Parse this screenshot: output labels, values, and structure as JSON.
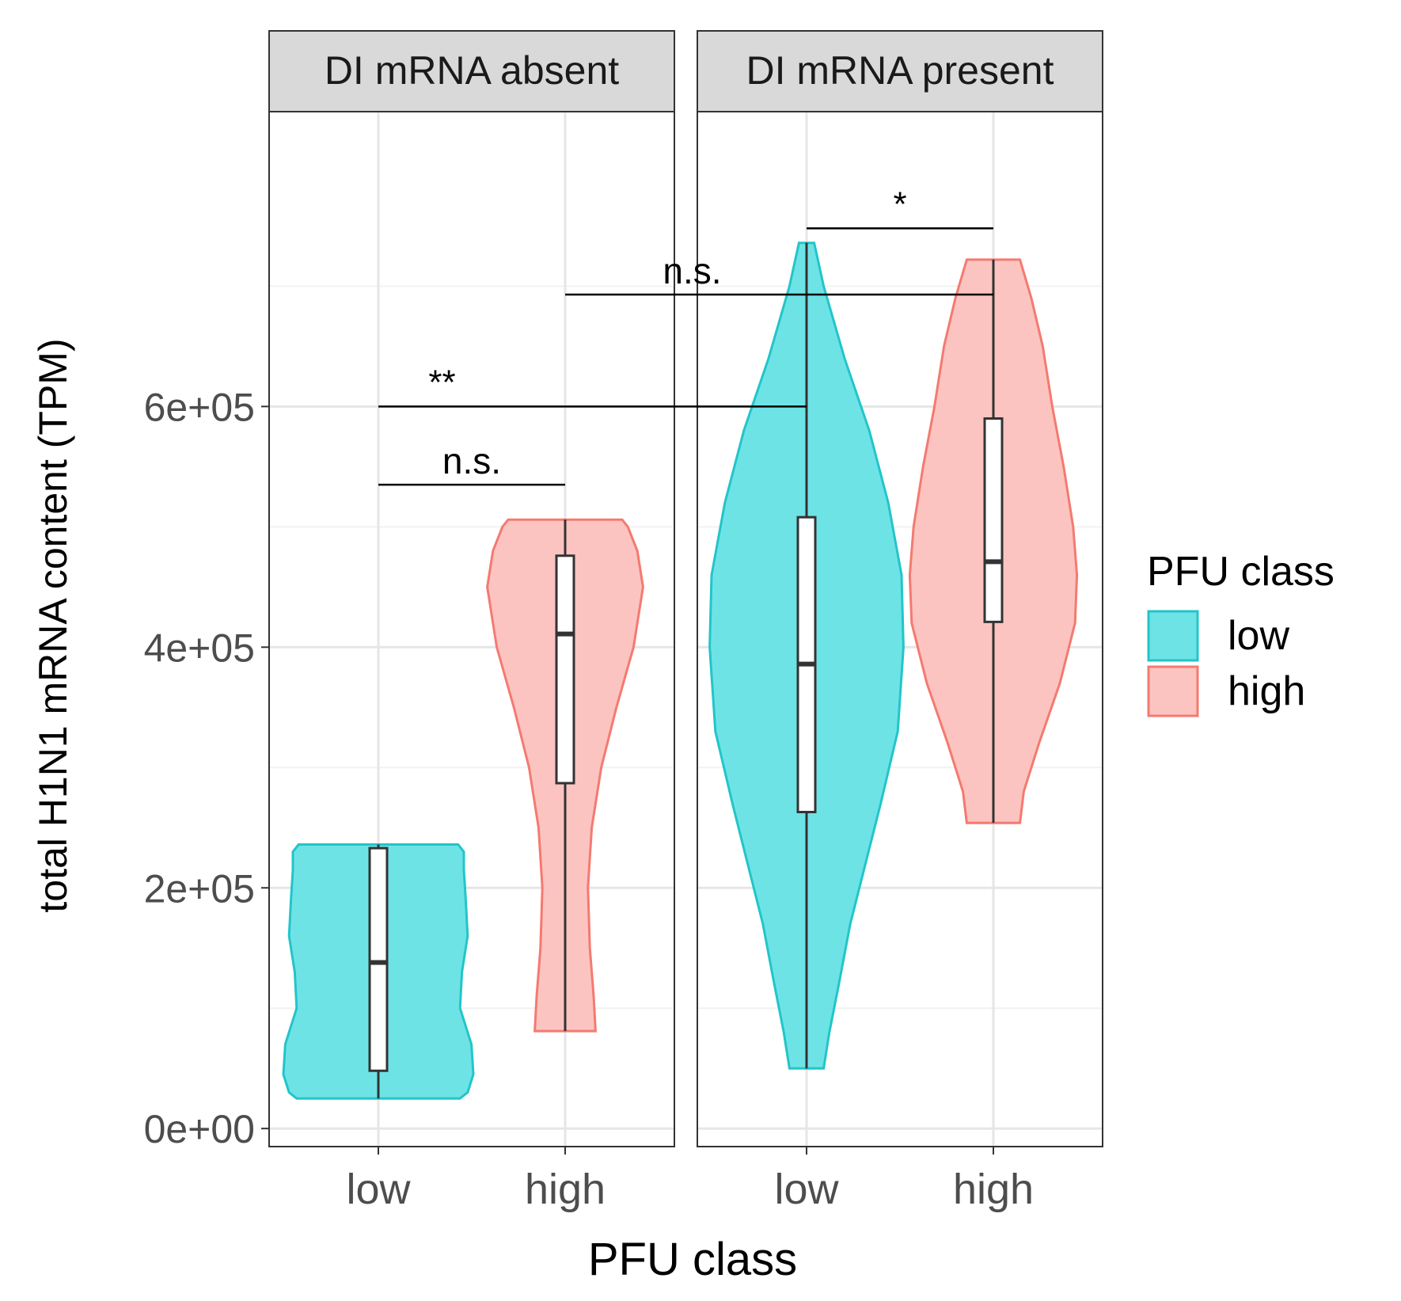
{
  "chart_data": {
    "type": "violin",
    "title": "",
    "xlabel": "PFU class",
    "ylabel": "total H1N1 mRNA content (TPM)",
    "ylim": [
      -15000,
      845000
    ],
    "yticks": [
      0,
      200000,
      400000,
      600000
    ],
    "ytick_labels": [
      "0e+00",
      "2e+05",
      "4e+05",
      "6e+05"
    ],
    "categories": [
      "low",
      "high"
    ],
    "legend": {
      "title": "PFU class",
      "position": "right",
      "entries": [
        {
          "label": "low",
          "fill": "#6ee3e6",
          "stroke": "#22c5c9"
        },
        {
          "label": "high",
          "fill": "#fbc4c1",
          "stroke": "#f47a70"
        }
      ]
    },
    "panels": [
      {
        "strip": "DI mRNA absent",
        "groups": [
          {
            "category": "low",
            "color": "low",
            "min": 25000,
            "q1": 48000,
            "median": 138000,
            "q3": 233000,
            "max": 236000,
            "violin_profile": [
              [
                25000,
                0.43
              ],
              [
                30000,
                0.47
              ],
              [
                45000,
                0.5
              ],
              [
                70000,
                0.49
              ],
              [
                100000,
                0.43
              ],
              [
                130000,
                0.44
              ],
              [
                160000,
                0.47
              ],
              [
                190000,
                0.46
              ],
              [
                215000,
                0.45
              ],
              [
                230000,
                0.45
              ],
              [
                236000,
                0.42
              ]
            ]
          },
          {
            "category": "high",
            "color": "high",
            "min": 81000,
            "q1": 287000,
            "median": 411000,
            "q3": 476000,
            "max": 506000,
            "violin_profile": [
              [
                81000,
                0.16
              ],
              [
                110000,
                0.15
              ],
              [
                150000,
                0.13
              ],
              [
                200000,
                0.12
              ],
              [
                250000,
                0.14
              ],
              [
                300000,
                0.19
              ],
              [
                350000,
                0.27
              ],
              [
                400000,
                0.36
              ],
              [
                450000,
                0.41
              ],
              [
                480000,
                0.38
              ],
              [
                500000,
                0.33
              ],
              [
                506000,
                0.3
              ]
            ]
          }
        ]
      },
      {
        "strip": "DI mRNA present",
        "groups": [
          {
            "category": "low",
            "color": "low",
            "min": 50000,
            "q1": 263000,
            "median": 386000,
            "q3": 508000,
            "max": 736000,
            "violin_profile": [
              [
                50000,
                0.09
              ],
              [
                80000,
                0.12
              ],
              [
                120000,
                0.17
              ],
              [
                170000,
                0.23
              ],
              [
                220000,
                0.31
              ],
              [
                270000,
                0.39
              ],
              [
                330000,
                0.48
              ],
              [
                400000,
                0.51
              ],
              [
                460000,
                0.5
              ],
              [
                520000,
                0.43
              ],
              [
                580000,
                0.33
              ],
              [
                640000,
                0.2
              ],
              [
                700000,
                0.09
              ],
              [
                736000,
                0.04
              ]
            ]
          },
          {
            "category": "high",
            "color": "high",
            "min": 254000,
            "q1": 421000,
            "median": 471000,
            "q3": 590000,
            "max": 722000,
            "violin_profile": [
              [
                254000,
                0.14
              ],
              [
                280000,
                0.16
              ],
              [
                320000,
                0.24
              ],
              [
                370000,
                0.35
              ],
              [
                420000,
                0.43
              ],
              [
                460000,
                0.44
              ],
              [
                500000,
                0.42
              ],
              [
                550000,
                0.37
              ],
              [
                600000,
                0.31
              ],
              [
                650000,
                0.26
              ],
              [
                690000,
                0.2
              ],
              [
                722000,
                0.14
              ]
            ]
          }
        ]
      }
    ],
    "annotations": [
      {
        "label": "n.s.",
        "from": [
          0,
          "low"
        ],
        "to": [
          0,
          "high"
        ],
        "y": 535000
      },
      {
        "label": "**",
        "from": [
          0,
          "low"
        ],
        "to": [
          1,
          "low"
        ],
        "y": 600000
      },
      {
        "label": "n.s.",
        "from": [
          0,
          "high"
        ],
        "to": [
          1,
          "high"
        ],
        "y": 693000
      },
      {
        "label": "*",
        "from": [
          1,
          "low"
        ],
        "to": [
          1,
          "high"
        ],
        "y": 748000
      }
    ]
  }
}
